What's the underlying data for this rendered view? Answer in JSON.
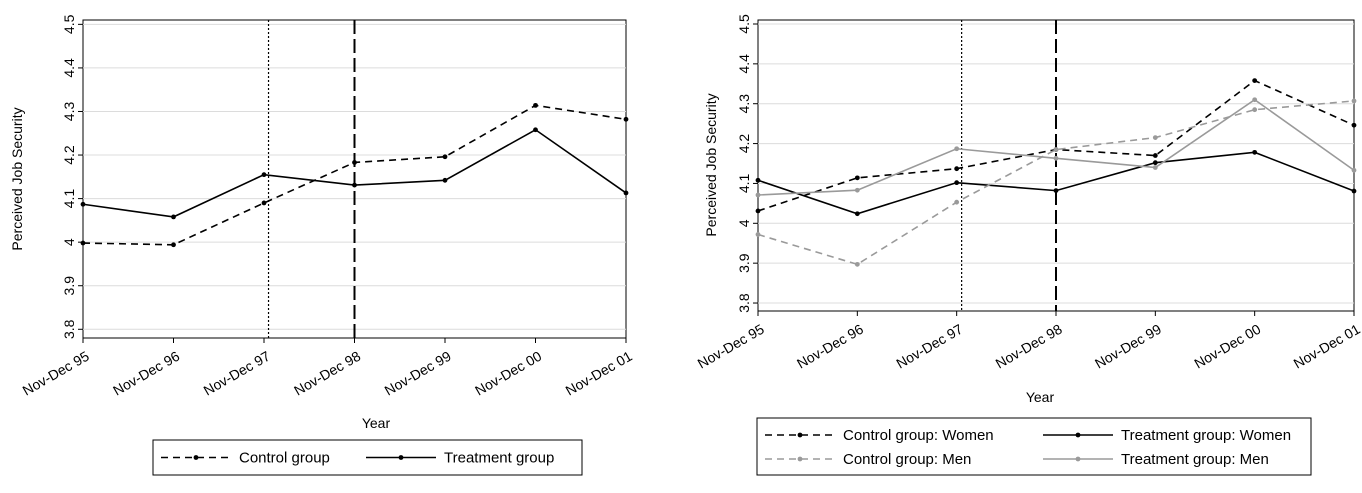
{
  "chart_data": [
    {
      "type": "line",
      "title": "",
      "xlabel": "Year",
      "ylabel": "Perceived Job Security",
      "ylim": [
        3.78,
        4.51
      ],
      "yticks": [
        "3.8",
        "3.9",
        "4",
        "4.1",
        "4.2",
        "4.3",
        "4.4",
        "4.5"
      ],
      "categories": [
        "Nov-Dec 95",
        "Nov-Dec 96",
        "Nov-Dec 97",
        "Nov-Dec 98",
        "Nov-Dec 99",
        "Nov-Dec 00",
        "Nov-Dec 01"
      ],
      "vlines": [
        {
          "x": 2.05,
          "style": "dotted"
        },
        {
          "x": 3.0,
          "style": "longdash"
        }
      ],
      "legend_position": "bottom",
      "series": [
        {
          "name": "Control group",
          "color": "#000000",
          "dash": "dash",
          "values": [
            3.998,
            3.994,
            4.09,
            4.183,
            4.196,
            4.314,
            4.282
          ]
        },
        {
          "name": "Treatment group",
          "color": "#000000",
          "dash": "solid",
          "values": [
            4.087,
            4.058,
            4.155,
            4.131,
            4.142,
            4.258,
            4.113
          ]
        }
      ],
      "grid": true
    },
    {
      "type": "line",
      "title": "",
      "xlabel": "Year",
      "ylabel": "Perceived Job Security",
      "ylim": [
        3.78,
        4.51
      ],
      "yticks": [
        "3.8",
        "3.9",
        "4",
        "4.1",
        "4.2",
        "4.3",
        "4.4",
        "4.5"
      ],
      "categories": [
        "Nov-Dec 95",
        "Nov-Dec 96",
        "Nov-Dec 97",
        "Nov-Dec 98",
        "Nov-Dec 99",
        "Nov-Dec 00",
        "Nov-Dec 01"
      ],
      "vlines": [
        {
          "x": 2.05,
          "style": "dotted"
        },
        {
          "x": 3.0,
          "style": "longdash"
        }
      ],
      "legend_position": "bottom",
      "series": [
        {
          "name": "Control group: Women",
          "color": "#000000",
          "dash": "dash",
          "values": [
            4.031,
            4.114,
            4.137,
            4.185,
            4.17,
            4.358,
            4.246
          ]
        },
        {
          "name": "Treatment group: Women",
          "color": "#000000",
          "dash": "solid",
          "values": [
            4.108,
            4.024,
            4.102,
            4.082,
            4.152,
            4.178,
            4.081
          ]
        },
        {
          "name": "Control group: Men",
          "color": "#9a9a9a",
          "dash": "dash",
          "values": [
            3.972,
            3.897,
            4.053,
            4.185,
            4.215,
            4.285,
            4.307
          ]
        },
        {
          "name": "Treatment group: Men",
          "color": "#9a9a9a",
          "dash": "solid",
          "values": [
            4.071,
            4.083,
            4.187,
            4.163,
            4.14,
            4.31,
            4.133
          ]
        }
      ],
      "grid": true
    }
  ]
}
